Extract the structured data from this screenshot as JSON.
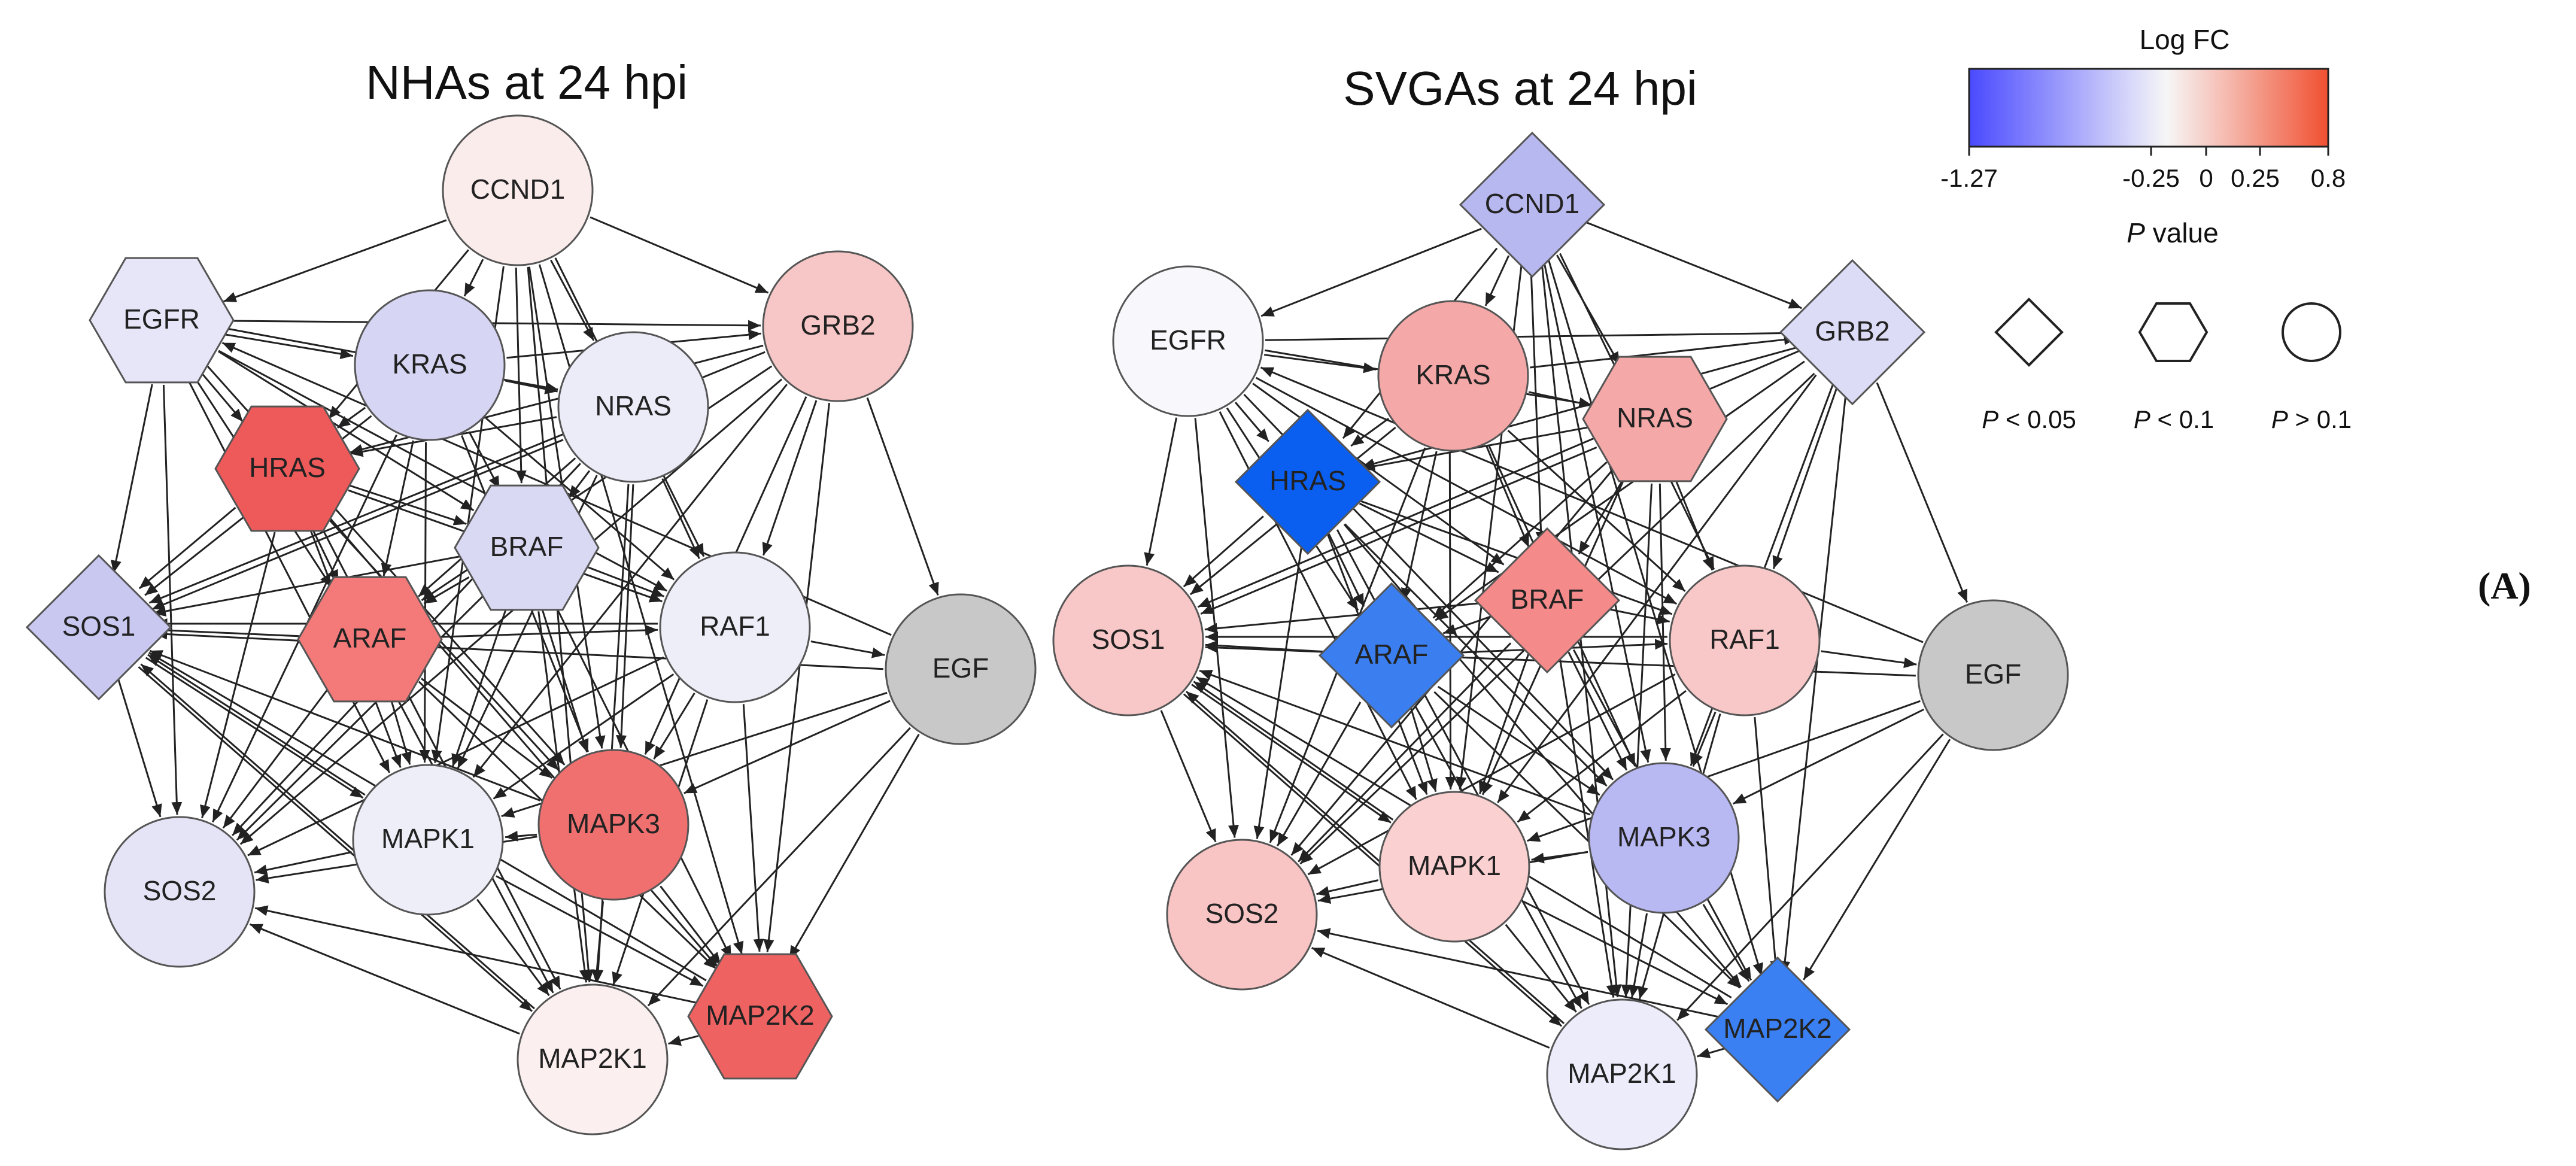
{
  "panel_label": "(A)",
  "colors": {
    "fc_low": "#4a4aff",
    "fc_mid": "#f4f4f4",
    "fc_high": "#f05030",
    "egf_fill": "#c8c8c8",
    "edge": "#222222"
  },
  "networks": [
    {
      "id": "nhas",
      "title": "NHAs at 24 hpi",
      "nodes": [
        {
          "id": "CCND1",
          "label": "CCND1",
          "shape": "circle",
          "fill": "#fbecec"
        },
        {
          "id": "EGFR",
          "label": "EGFR",
          "shape": "hexagon",
          "fill": "#e6e6f8"
        },
        {
          "id": "KRAS",
          "label": "KRAS",
          "shape": "circle",
          "fill": "#d6d6f4"
        },
        {
          "id": "NRAS",
          "label": "NRAS",
          "shape": "circle",
          "fill": "#ececf8"
        },
        {
          "id": "GRB2",
          "label": "GRB2",
          "shape": "circle",
          "fill": "#f7c6c6"
        },
        {
          "id": "HRAS",
          "label": "HRAS",
          "shape": "hexagon",
          "fill": "#ee5a5a"
        },
        {
          "id": "BRAF",
          "label": "BRAF",
          "shape": "hexagon",
          "fill": "#d9d9f4"
        },
        {
          "id": "ARAF",
          "label": "ARAF",
          "shape": "hexagon",
          "fill": "#f47a7a"
        },
        {
          "id": "RAF1",
          "label": "RAF1",
          "shape": "circle",
          "fill": "#eeeef8"
        },
        {
          "id": "SOS1",
          "label": "SOS1",
          "shape": "diamond",
          "fill": "#c8c8f0"
        },
        {
          "id": "EGF",
          "label": "EGF",
          "shape": "circle",
          "fill": "#c8c8c8"
        },
        {
          "id": "MAPK3",
          "label": "MAPK3",
          "shape": "circle",
          "fill": "#f07070"
        },
        {
          "id": "MAPK1",
          "label": "MAPK1",
          "shape": "circle",
          "fill": "#eeeef8"
        },
        {
          "id": "SOS2",
          "label": "SOS2",
          "shape": "circle",
          "fill": "#e4e4f6"
        },
        {
          "id": "MAP2K2",
          "label": "MAP2K2",
          "shape": "hexagon",
          "fill": "#ee6262"
        },
        {
          "id": "MAP2K1",
          "label": "MAP2K1",
          "shape": "circle",
          "fill": "#fbefef"
        }
      ]
    },
    {
      "id": "svgas",
      "title": "SVGAs at 24 hpi",
      "nodes": [
        {
          "id": "CCND1",
          "label": "CCND1",
          "shape": "diamond",
          "fill": "#b8b8f0"
        },
        {
          "id": "EGFR",
          "label": "EGFR",
          "shape": "circle",
          "fill": "#f8f8fc"
        },
        {
          "id": "KRAS",
          "label": "KRAS",
          "shape": "circle",
          "fill": "#f4a8a8"
        },
        {
          "id": "NRAS",
          "label": "NRAS",
          "shape": "hexagon",
          "fill": "#f4a8a8"
        },
        {
          "id": "GRB2",
          "label": "GRB2",
          "shape": "diamond",
          "fill": "#dcdcf6"
        },
        {
          "id": "HRAS",
          "label": "HRAS",
          "shape": "diamond",
          "fill": "#0a5ef0"
        },
        {
          "id": "BRAF",
          "label": "BRAF",
          "shape": "diamond",
          "fill": "#f48a8a"
        },
        {
          "id": "ARAF",
          "label": "ARAF",
          "shape": "diamond",
          "fill": "#3a7ef0"
        },
        {
          "id": "RAF1",
          "label": "RAF1",
          "shape": "circle",
          "fill": "#f8c8c8"
        },
        {
          "id": "SOS1",
          "label": "SOS1",
          "shape": "circle",
          "fill": "#f8c8c8"
        },
        {
          "id": "EGF",
          "label": "EGF",
          "shape": "circle",
          "fill": "#c8c8c8"
        },
        {
          "id": "MAPK3",
          "label": "MAPK3",
          "shape": "circle",
          "fill": "#b8b8f2"
        },
        {
          "id": "MAPK1",
          "label": "MAPK1",
          "shape": "circle",
          "fill": "#fad0d0"
        },
        {
          "id": "SOS2",
          "label": "SOS2",
          "shape": "circle",
          "fill": "#f8c4c4"
        },
        {
          "id": "MAP2K2",
          "label": "MAP2K2",
          "shape": "diamond",
          "fill": "#3a80f2"
        },
        {
          "id": "MAP2K1",
          "label": "MAP2K1",
          "shape": "circle",
          "fill": "#ececfa"
        }
      ]
    }
  ],
  "edges": [
    [
      "CCND1",
      "EGFR"
    ],
    [
      "CCND1",
      "KRAS"
    ],
    [
      "CCND1",
      "NRAS"
    ],
    [
      "CCND1",
      "GRB2"
    ],
    [
      "CCND1",
      "HRAS"
    ],
    [
      "CCND1",
      "BRAF"
    ],
    [
      "CCND1",
      "RAF1"
    ],
    [
      "CCND1",
      "MAPK3"
    ],
    [
      "CCND1",
      "MAPK1"
    ],
    [
      "CCND1",
      "MAP2K1"
    ],
    [
      "CCND1",
      "MAP2K2"
    ],
    [
      "EGFR",
      "KRAS"
    ],
    [
      "EGFR",
      "NRAS"
    ],
    [
      "EGFR",
      "GRB2"
    ],
    [
      "EGFR",
      "HRAS"
    ],
    [
      "EGFR",
      "SOS1"
    ],
    [
      "EGFR",
      "SOS2"
    ],
    [
      "EGFR",
      "ARAF"
    ],
    [
      "EGFR",
      "BRAF"
    ],
    [
      "EGFR",
      "RAF1"
    ],
    [
      "EGFR",
      "MAPK1"
    ],
    [
      "EGFR",
      "MAPK3"
    ],
    [
      "KRAS",
      "NRAS"
    ],
    [
      "KRAS",
      "HRAS"
    ],
    [
      "KRAS",
      "BRAF"
    ],
    [
      "KRAS",
      "ARAF"
    ],
    [
      "KRAS",
      "RAF1"
    ],
    [
      "KRAS",
      "SOS1"
    ],
    [
      "KRAS",
      "SOS2"
    ],
    [
      "KRAS",
      "MAPK1"
    ],
    [
      "KRAS",
      "MAPK3"
    ],
    [
      "KRAS",
      "GRB2"
    ],
    [
      "NRAS",
      "HRAS"
    ],
    [
      "NRAS",
      "BRAF"
    ],
    [
      "NRAS",
      "ARAF"
    ],
    [
      "NRAS",
      "RAF1"
    ],
    [
      "NRAS",
      "SOS1"
    ],
    [
      "NRAS",
      "SOS2"
    ],
    [
      "NRAS",
      "MAPK1"
    ],
    [
      "NRAS",
      "MAPK3"
    ],
    [
      "NRAS",
      "MAP2K1"
    ],
    [
      "GRB2",
      "SOS1"
    ],
    [
      "GRB2",
      "SOS2"
    ],
    [
      "GRB2",
      "HRAS"
    ],
    [
      "GRB2",
      "ARAF"
    ],
    [
      "GRB2",
      "RAF1"
    ],
    [
      "GRB2",
      "MAPK3"
    ],
    [
      "GRB2",
      "MAPK1"
    ],
    [
      "GRB2",
      "EGF"
    ],
    [
      "GRB2",
      "MAP2K2"
    ],
    [
      "HRAS",
      "ARAF"
    ],
    [
      "HRAS",
      "BRAF"
    ],
    [
      "HRAS",
      "RAF1"
    ],
    [
      "HRAS",
      "SOS1"
    ],
    [
      "HRAS",
      "SOS2"
    ],
    [
      "HRAS",
      "MAPK1"
    ],
    [
      "HRAS",
      "MAPK3"
    ],
    [
      "HRAS",
      "MAP2K1"
    ],
    [
      "HRAS",
      "MAP2K2"
    ],
    [
      "BRAF",
      "ARAF"
    ],
    [
      "BRAF",
      "RAF1"
    ],
    [
      "BRAF",
      "MAPK1"
    ],
    [
      "BRAF",
      "MAPK3"
    ],
    [
      "BRAF",
      "MAP2K1"
    ],
    [
      "BRAF",
      "MAP2K2"
    ],
    [
      "BRAF",
      "SOS1"
    ],
    [
      "BRAF",
      "SOS2"
    ],
    [
      "ARAF",
      "SOS1"
    ],
    [
      "ARAF",
      "SOS2"
    ],
    [
      "ARAF",
      "MAPK1"
    ],
    [
      "ARAF",
      "MAPK3"
    ],
    [
      "ARAF",
      "MAP2K1"
    ],
    [
      "ARAF",
      "MAP2K2"
    ],
    [
      "ARAF",
      "RAF1"
    ],
    [
      "RAF1",
      "SOS1"
    ],
    [
      "RAF1",
      "MAPK1"
    ],
    [
      "RAF1",
      "MAPK3"
    ],
    [
      "RAF1",
      "MAP2K1"
    ],
    [
      "RAF1",
      "MAP2K2"
    ],
    [
      "RAF1",
      "EGF"
    ],
    [
      "RAF1",
      "SOS2"
    ],
    [
      "EGF",
      "SOS1"
    ],
    [
      "EGF",
      "MAPK3"
    ],
    [
      "EGF",
      "MAP2K2"
    ],
    [
      "EGF",
      "MAP2K1"
    ],
    [
      "EGF",
      "MAPK1"
    ],
    [
      "EGF",
      "EGFR"
    ],
    [
      "SOS1",
      "SOS2"
    ],
    [
      "SOS1",
      "MAPK1"
    ],
    [
      "SOS1",
      "MAP2K1"
    ],
    [
      "MAPK3",
      "MAPK1"
    ],
    [
      "MAPK3",
      "MAP2K2"
    ],
    [
      "MAPK3",
      "MAP2K1"
    ],
    [
      "MAPK3",
      "SOS1"
    ],
    [
      "MAPK3",
      "SOS2"
    ],
    [
      "MAPK1",
      "SOS2"
    ],
    [
      "MAPK1",
      "MAP2K1"
    ],
    [
      "MAPK1",
      "MAP2K2"
    ],
    [
      "MAPK1",
      "SOS1"
    ],
    [
      "MAP2K2",
      "MAP2K1"
    ],
    [
      "MAP2K2",
      "SOS2"
    ],
    [
      "MAP2K2",
      "SOS1"
    ],
    [
      "MAP2K1",
      "SOS2"
    ],
    [
      "MAP2K1",
      "SOS1"
    ]
  ],
  "legend": {
    "logfc_title": "Log FC",
    "ticks": [
      "-1.27",
      "-0.25",
      "0",
      "0.25",
      "0.8"
    ],
    "pvalue_title_italic": "P",
    "pvalue_title_rest": " value",
    "shapes": [
      {
        "shape": "diamond",
        "label_italic": "P",
        "label_rest": " < 0.05"
      },
      {
        "shape": "hexagon",
        "label_italic": "P",
        "label_rest": " < 0.1"
      },
      {
        "shape": "circle",
        "label_italic": "P",
        "label_rest": " > 0.1"
      }
    ]
  }
}
